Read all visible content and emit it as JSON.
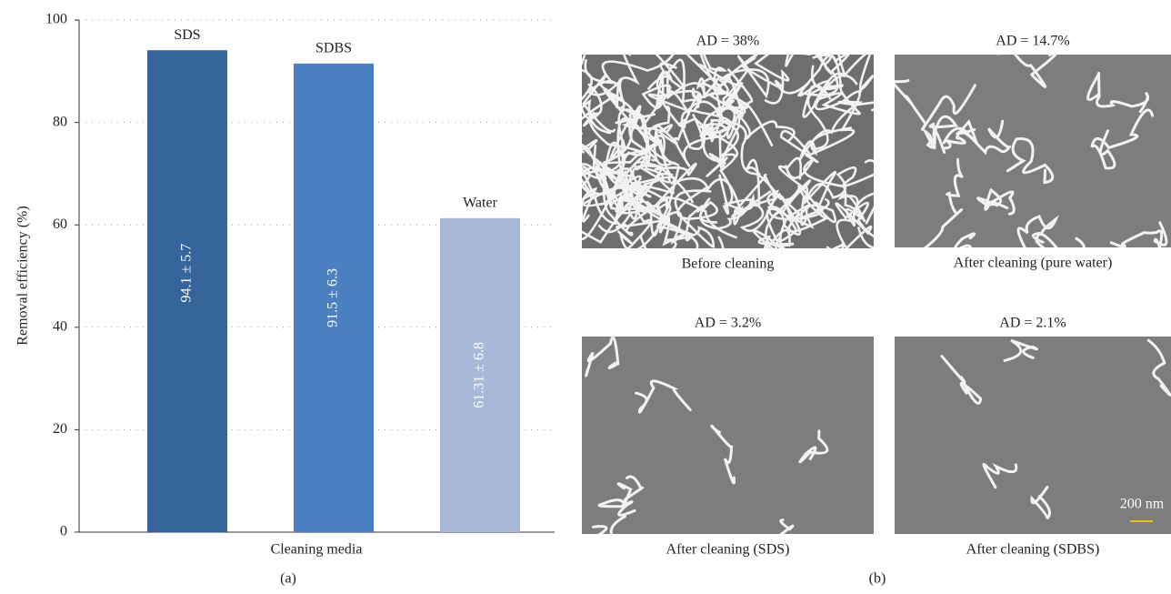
{
  "chart_data": {
    "type": "bar",
    "categories": [
      "SDS",
      "SDBS",
      "Water"
    ],
    "values": [
      94.1,
      91.5,
      61.31
    ],
    "value_labels": [
      "94.1 ± 5.7",
      "91.5 ± 6.3",
      "61.31 ± 6.8"
    ],
    "colors": [
      "#35659a",
      "#4a7fc0",
      "#a8b8d8"
    ],
    "ylabel": "Removal efficiency (%)",
    "xlabel": "Cleaning media",
    "ylim": [
      0,
      100
    ],
    "yticks": [
      0,
      20,
      40,
      60,
      80,
      100
    ],
    "grid": true
  },
  "image_panel": {
    "images": [
      {
        "title": "AD = 38%",
        "caption": "Before cleaning"
      },
      {
        "title": "AD = 14.7%",
        "caption": "After cleaning (pure water)"
      },
      {
        "title": "AD = 3.2%",
        "caption": "After cleaning (SDS)"
      },
      {
        "title": "AD = 2.1%",
        "caption": "After cleaning (SDBS)",
        "scale_bar": "200 nm"
      }
    ]
  },
  "panel_labels": [
    "(a)",
    "(b)"
  ]
}
